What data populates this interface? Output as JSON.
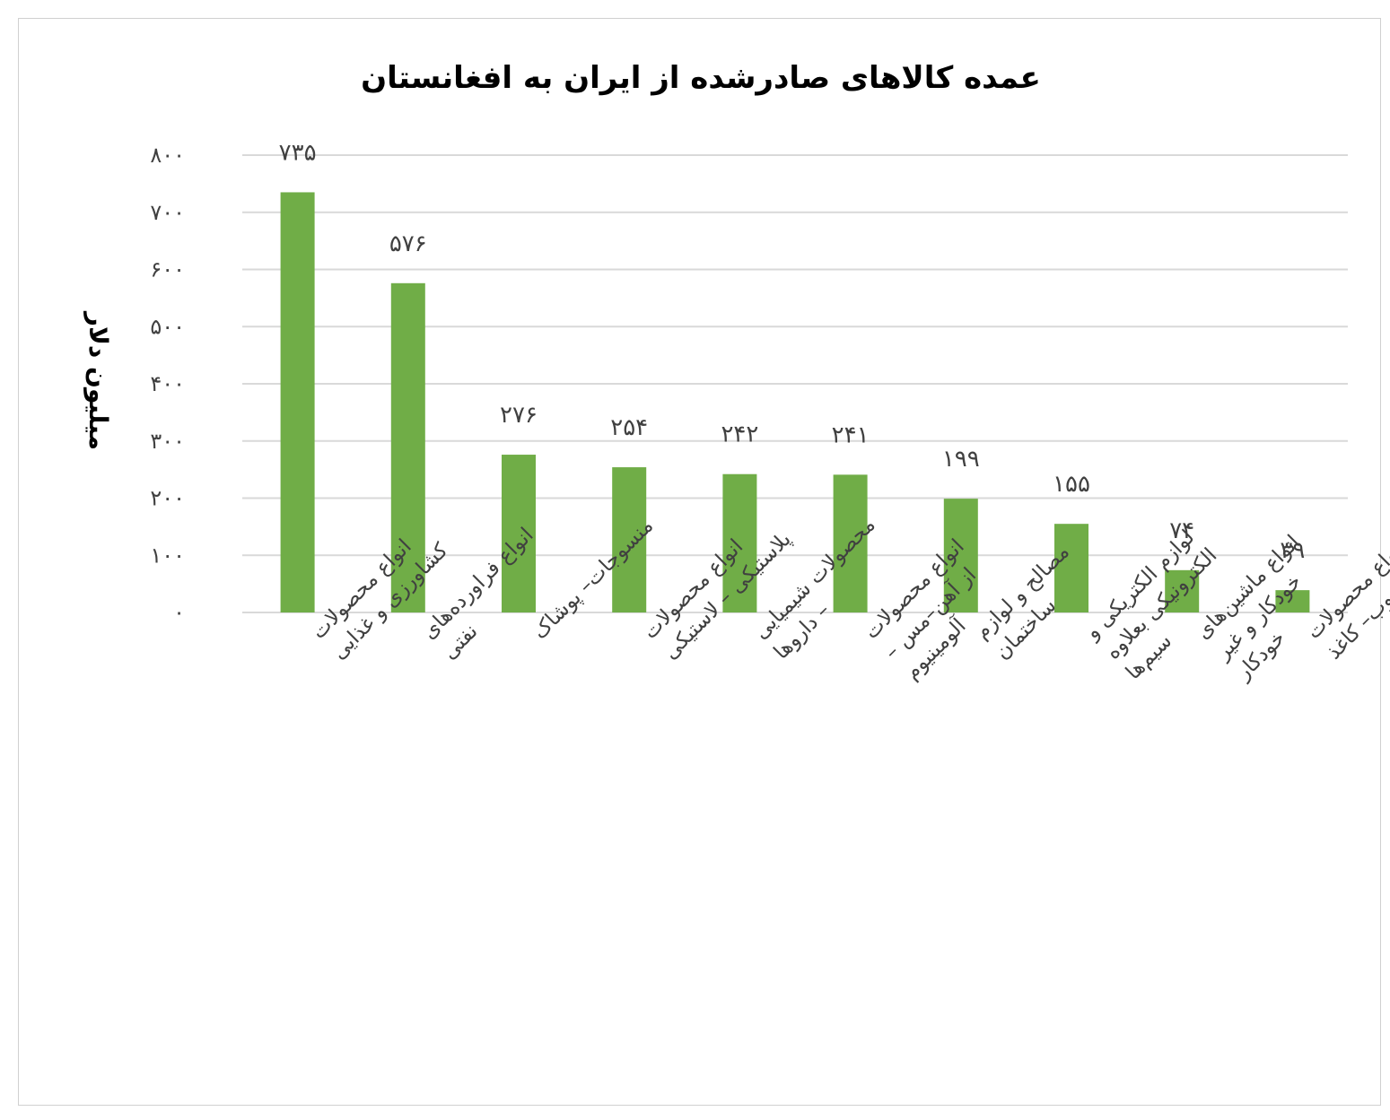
{
  "chart_data": {
    "type": "bar",
    "title": "عمده کالاهای صادرشده از ایران به افغانستان",
    "xlabel": "",
    "ylabel": "میلیون دلار",
    "ylim": [
      0,
      800
    ],
    "ytick_values": [
      0,
      100,
      200,
      300,
      400,
      500,
      600,
      700,
      800
    ],
    "ytick_labels": [
      "۰",
      "۱۰۰",
      "۲۰۰",
      "۳۰۰",
      "۴۰۰",
      "۵۰۰",
      "۶۰۰",
      "۷۰۰",
      "۸۰۰"
    ],
    "categories": [
      [
        "انواع محصولات",
        "کشاورزی و غذایی"
      ],
      [
        "انواع فراورده‌های",
        "نفتی"
      ],
      [
        "منسوجات– پوشاک"
      ],
      [
        "انواع محصولات",
        "پلاستیکی – لاستیکی"
      ],
      [
        "محصولات شیمیایی",
        "– داروها"
      ],
      [
        "انواع محصولات",
        "از آهن–مس –",
        "آلومینیوم"
      ],
      [
        "مصالح و لوازم",
        "ساختمان"
      ],
      [
        "لوازم الکتریکی و",
        "الکترونیکی بعلاوه",
        "سیم‌ها"
      ],
      [
        "انواع ماشین‌های",
        "خودکار و غیر",
        "خودکار"
      ],
      [
        "انواع محصولات",
        "از چوب– کاغذ"
      ]
    ],
    "values": [
      735,
      576,
      276,
      254,
      242,
      241,
      199,
      155,
      74,
      39
    ],
    "data_labels": [
      "۷۳۵",
      "۵۷۶",
      "۲۷۶",
      "۲۵۴",
      "۲۴۲",
      "۲۴۱",
      "۱۹۹",
      "۱۵۵",
      "۷۴",
      "۳۹"
    ],
    "bar_color": "#70ad47",
    "grid": true,
    "legend": "none"
  }
}
